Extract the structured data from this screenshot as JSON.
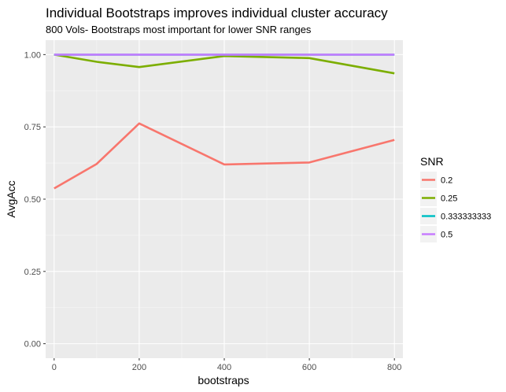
{
  "chart_data": {
    "type": "line",
    "title": "Individual Bootstraps improves individual cluster accuracy",
    "subtitle": "800 Vols- Bootstraps most important for lower SNR ranges",
    "xlabel": "bootstraps",
    "ylabel": "AvgAcc",
    "xlim": [
      -20,
      820
    ],
    "ylim": [
      -0.05,
      1.05
    ],
    "x_ticks": [
      0,
      200,
      400,
      600,
      800
    ],
    "x_tick_labels": [
      "0",
      "200",
      "400",
      "600",
      "800"
    ],
    "y_ticks": [
      0,
      0.25,
      0.5,
      0.75,
      1.0
    ],
    "y_tick_labels": [
      "0.00",
      "0.25",
      "0.50",
      "0.75",
      "1.00"
    ],
    "grid": true,
    "legend_title": "SNR",
    "legend_position": "right",
    "series": [
      {
        "name": "0.2",
        "color": "#F8766D",
        "x": [
          0,
          100,
          200,
          400,
          600,
          800
        ],
        "y": [
          0.537,
          0.622,
          0.762,
          0.62,
          0.627,
          0.705
        ]
      },
      {
        "name": "0.25",
        "color": "#7CAE00",
        "x": [
          0,
          100,
          200,
          400,
          600,
          800
        ],
        "y": [
          1.0,
          0.975,
          0.957,
          0.995,
          0.988,
          0.935
        ]
      },
      {
        "name": "0.333333333",
        "color": "#00BFC4",
        "x": [
          0,
          100,
          200,
          400,
          600,
          800
        ],
        "y": [
          1.0,
          1.0,
          1.0,
          1.0,
          1.0,
          1.0
        ]
      },
      {
        "name": "0.5",
        "color": "#C77CFF",
        "x": [
          0,
          100,
          200,
          400,
          600,
          800
        ],
        "y": [
          1.0,
          1.0,
          1.0,
          1.0,
          1.0,
          1.0
        ]
      }
    ]
  }
}
